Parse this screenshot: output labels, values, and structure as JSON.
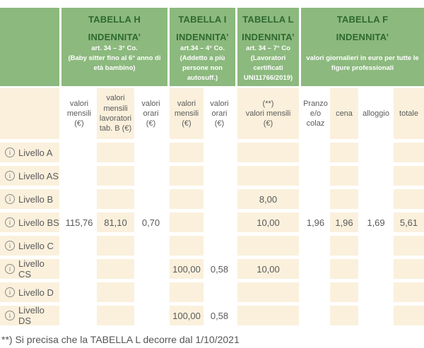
{
  "colors": {
    "header_green": "#8CB97E",
    "header_title_green": "#2E6930",
    "cell_beige": "#FAF0DC",
    "text_gray": "#5A5A5A",
    "footnote_gray": "#555555"
  },
  "icons": {
    "info_glyph": "i"
  },
  "table": {
    "groups": [
      {
        "title": "",
        "subtitle": "",
        "art": "",
        "note": ""
      },
      {
        "title": "TABELLA H",
        "subtitle": "INDENNITA’",
        "art": "art. 34 – 3° Co.",
        "note": "(Baby sitter fino al 6° anno di età bambino)"
      },
      {
        "title": "TABELLA I",
        "subtitle": "INDENNITA’",
        "art": "art.34 – 4° Co.",
        "note": "(Addetto a più persone non autosuff.)"
      },
      {
        "title": "TABELLA L",
        "subtitle": "INDENNITA’",
        "art": "art. 34 – 7° Co",
        "note": "(Lavoratori certificati UNI11766/2019)"
      },
      {
        "title": "TABELLA F",
        "subtitle": "INDENNITA’",
        "art": "",
        "note": "valori giornalieri in euro per tutte le figure professionali"
      }
    ],
    "column_headers": [
      "valori\nmensili\n(€)",
      "valori\nmensili\nlavoratori\ntab. B (€)",
      "valori\norari\n(€)",
      "valori\nmensili\n(€)",
      "valori\norari\n(€)",
      "(**)\nvalori mensili\n(€)",
      "Pranzo\ne/o\ncolaz",
      "cena",
      "alloggio",
      "totale"
    ],
    "rows": [
      {
        "label": "Livello A",
        "cells": [
          "",
          "",
          "",
          "",
          "",
          "",
          "",
          "",
          "",
          ""
        ]
      },
      {
        "label": "Livello AS",
        "cells": [
          "",
          "",
          "",
          "",
          "",
          "",
          "",
          "",
          "",
          ""
        ]
      },
      {
        "label": "Livello B",
        "cells": [
          "",
          "",
          "",
          "",
          "",
          "8,00",
          "",
          "",
          "",
          ""
        ]
      },
      {
        "label": "Livello BS",
        "cells": [
          "115,76",
          "81,10",
          "0,70",
          "",
          "",
          "10,00",
          "1,96",
          "1,96",
          "1,69",
          "5,61"
        ]
      },
      {
        "label": "Livello C",
        "cells": [
          "",
          "",
          "",
          "",
          "",
          "",
          "",
          "",
          "",
          ""
        ]
      },
      {
        "label": "Livello CS",
        "cells": [
          "",
          "",
          "",
          "100,00",
          "0,58",
          "10,00",
          "",
          "",
          "",
          ""
        ]
      },
      {
        "label": "Livello D",
        "cells": [
          "",
          "",
          "",
          "",
          "",
          "",
          "",
          "",
          "",
          ""
        ]
      },
      {
        "label": "Livello DS",
        "cells": [
          "",
          "",
          "",
          "100,00",
          "0,58",
          "",
          "",
          "",
          "",
          ""
        ]
      }
    ],
    "footnote": "**) Si precisa che la TABELLA L decorre dal 1/10/2021"
  }
}
